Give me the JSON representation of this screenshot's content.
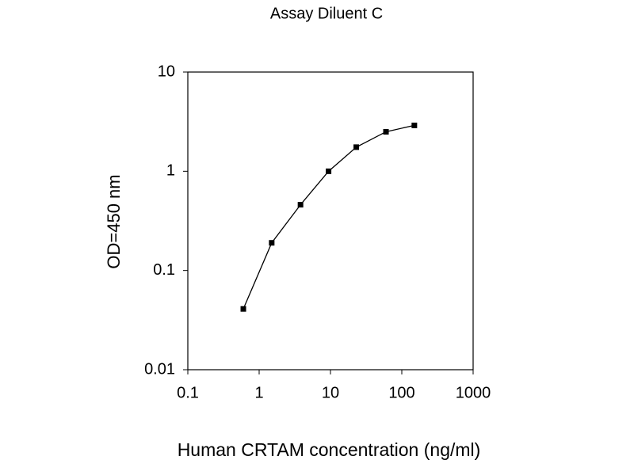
{
  "chart_data": {
    "type": "line",
    "title": "Assay Diluent C",
    "x_label": "Human CRTAM concentration (ng/ml)",
    "y_label": "OD=450 nm",
    "x": [
      0.6,
      1.5,
      3.8,
      9.4,
      23,
      60,
      150
    ],
    "series": [
      {
        "color": "#000000",
        "values": [
          0.041,
          0.19,
          0.46,
          1.0,
          1.75,
          2.5,
          2.9
        ]
      }
    ],
    "xscale": "log",
    "yscale": "log",
    "xlim": [
      0.1,
      1000
    ],
    "ylim": [
      0.01,
      10
    ],
    "xticks": [
      0.1,
      1,
      10,
      100,
      1000
    ],
    "yticks": [
      0.01,
      0.1,
      1,
      10
    ],
    "markers": true
  }
}
